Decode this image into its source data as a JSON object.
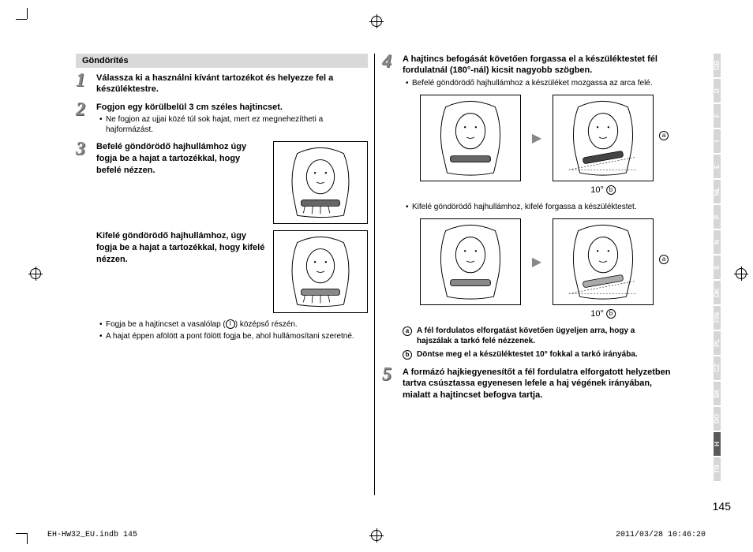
{
  "section_title": "Göndörítés",
  "steps": {
    "s1": {
      "num": "1",
      "title": "Válassza ki a használni kívánt tartozékot és helyezze fel a készüléktestre."
    },
    "s2": {
      "num": "2",
      "title": "Fogjon egy körülbelül 3 cm széles hajtincset.",
      "bullet1": "Ne fogjon az ujjai közé túl sok hajat, mert ez megnehezítheti a hajformázást."
    },
    "s3": {
      "num": "3",
      "title_a": "Befelé göndörödő hajhullámhoz úgy fogja be a hajat a tartozékkal, hogy befelé nézzen.",
      "title_b": "Kifelé göndörödő hajhullámhoz, úgy fogja be a hajat a tartozékkal, hogy kifelé nézzen.",
      "bullet1_pre": "Fogja be a hajtincset a vasalólap (",
      "bullet1_mid": "I",
      "bullet1_post": ") középső részén.",
      "bullet2": "A hajat éppen afölött a pont fölött fogja be, ahol hullámosítani szeretné."
    },
    "s4": {
      "num": "4",
      "title": "A hajtincs befogását követően forgassa el a készüléktestet fél fordulatnál (180°-nál) kicsit nagyobb szögben.",
      "bullet1": "Befelé göndörödő hajhullámhoz a készüléket mozgassa az arca felé.",
      "bullet2": "Kifelé göndörödő hajhullámhoz, kifelé forgassa a készüléktestet.",
      "angle": "10°",
      "label_a": "a",
      "label_b": "b",
      "note_a": "A fél fordulatos elforgatást követően ügyeljen arra, hogy a hajszálak a tarkó felé nézzenek.",
      "note_b": "Döntse meg el a készüléktestet 10° fokkal a tarkó irányába."
    },
    "s5": {
      "num": "5",
      "title": "A formázó hajkiegyenesítőt a fél fordulatra elforgatott helyzetben tartva csúsztassa egyenesen lefele a haj végének irányában, mialatt a hajtincset befogva tartja."
    }
  },
  "lang_tabs": [
    "GB",
    "D",
    "F",
    "I",
    "E",
    "NL",
    "P",
    "N",
    "S",
    "DK",
    "FIN",
    "PL",
    "CZ",
    "SK",
    "RO",
    "H",
    "TR"
  ],
  "active_lang": "H",
  "page_number": "145",
  "footer_left": "EH-HW32_EU.indb   145",
  "footer_right": "2011/03/28   10:46:20"
}
